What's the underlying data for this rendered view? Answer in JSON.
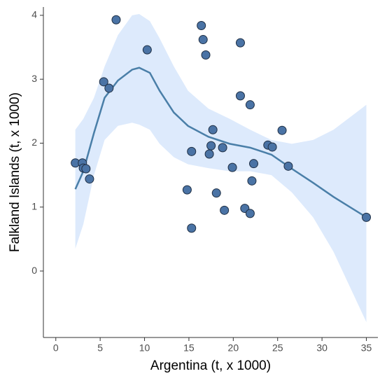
{
  "chart_data": {
    "type": "scatter",
    "x_label": "Argentina (t, x 1000)",
    "y_label": "Falkland Islands (t, x 1000)",
    "xlim": [
      -1.4,
      36.3
    ],
    "ylim": [
      -1.04,
      4.13
    ],
    "xticks": [
      0,
      5,
      10,
      15,
      20,
      25,
      30,
      35
    ],
    "yticks": [
      0,
      1,
      2,
      3,
      4
    ],
    "point_color": "#4a73a5",
    "line_color": "#4a7fa8",
    "band_color": "#ddeafc",
    "x": [
      2.2,
      3.0,
      3.1,
      3.4,
      3.8,
      5.4,
      6.0,
      6.8,
      10.3,
      16.4,
      16.6,
      16.9,
      20.8,
      20.8,
      21.9,
      17.7,
      17.5,
      17.3,
      15.3,
      18.8,
      19.9,
      22.3,
      22.1,
      23.9,
      24.4,
      25.5,
      26.2,
      14.8,
      18.1,
      19.0,
      21.3,
      21.9,
      15.3,
      35.0
    ],
    "y": [
      1.69,
      1.69,
      1.61,
      1.6,
      1.44,
      2.96,
      2.86,
      3.93,
      3.46,
      3.84,
      3.62,
      3.38,
      3.57,
      2.74,
      2.6,
      2.21,
      1.96,
      1.83,
      1.87,
      1.93,
      1.62,
      1.68,
      1.41,
      1.97,
      1.94,
      2.2,
      1.64,
      1.27,
      1.22,
      0.95,
      0.98,
      0.9,
      0.67,
      0.84
    ],
    "smooth": {
      "x": [
        2.2,
        3.1,
        4.3,
        5.5,
        7.0,
        8.6,
        9.4,
        10.6,
        11.7,
        13.3,
        14.9,
        17.2,
        19.6,
        21.9,
        24.3,
        26.6,
        29.0,
        31.3,
        35.0
      ],
      "y": [
        1.28,
        1.56,
        2.16,
        2.71,
        2.98,
        3.15,
        3.18,
        3.1,
        2.82,
        2.48,
        2.27,
        2.1,
        1.99,
        1.93,
        1.82,
        1.6,
        1.38,
        1.16,
        0.84
      ],
      "upper": [
        2.21,
        2.38,
        2.71,
        3.2,
        3.69,
        4.0,
        4.02,
        3.91,
        3.64,
        3.2,
        2.82,
        2.54,
        2.38,
        2.21,
        2.05,
        1.99,
        2.05,
        2.21,
        2.6
      ],
      "lower": [
        0.35,
        0.73,
        1.5,
        2.05,
        2.27,
        2.32,
        2.29,
        2.21,
        1.99,
        1.78,
        1.67,
        1.61,
        1.56,
        1.56,
        1.5,
        1.23,
        0.84,
        0.3,
        -0.8
      ]
    }
  }
}
